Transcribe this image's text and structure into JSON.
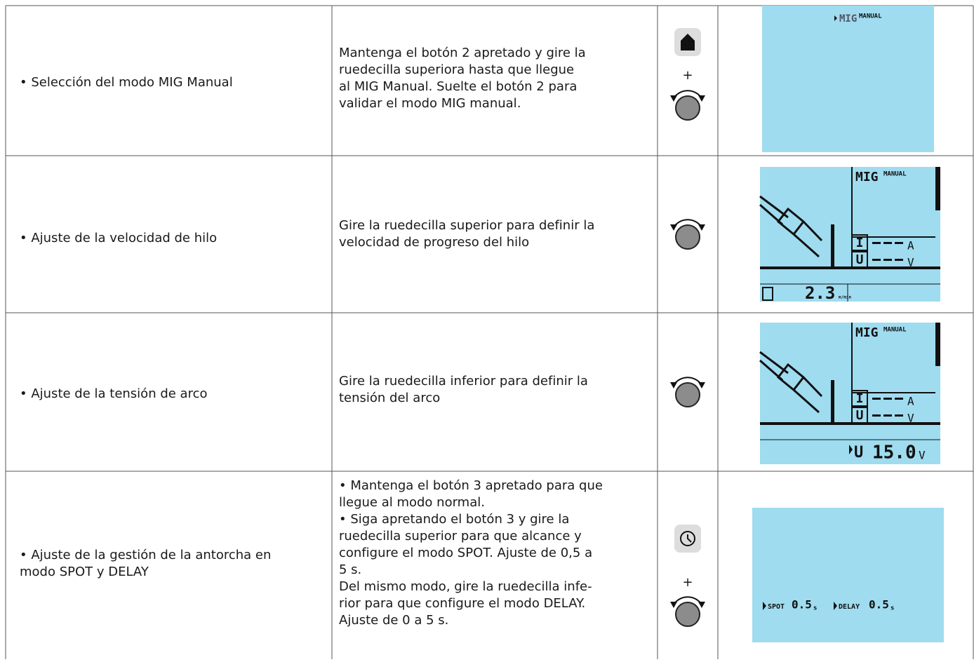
{
  "table": {
    "rows": [
      {
        "action": [
          "• Selección del modo MIG Manual"
        ],
        "instruction": [
          "Mantenga el botón 2 apretado y gire la",
          "ruedecilla superiora hasta que llegue",
          "al MIG Manual. Suelte el botón 2 para",
          "validar el modo MIG manual."
        ],
        "controls": {
          "plus": "+"
        },
        "screen": {
          "mode": "MIG",
          "sub": "MANUAL"
        }
      },
      {
        "action": [
          "• Ajuste de la velocidad de hilo"
        ],
        "instruction": [
          "Gire la ruedecilla superior para definir la",
          "velocidad de progreso del hilo"
        ],
        "screen": {
          "mode": "MIG",
          "sub": "MANUAL",
          "current": "I",
          "current_unit": "A",
          "voltage": "U",
          "voltage_unit": "V",
          "reading": "2.3",
          "reading_unit": "m/min"
        }
      },
      {
        "action": [
          "• Ajuste de la tensión de arco"
        ],
        "instruction": [
          "Gire la ruedecilla inferior para definir la",
          "tensión del arco"
        ],
        "screen": {
          "mode": "MIG",
          "sub": "MANUAL",
          "current": "I",
          "current_unit": "A",
          "voltage": "U",
          "voltage_unit": "V",
          "reading_label": "U",
          "reading": "15.0",
          "reading_unit": "V"
        }
      },
      {
        "action": [
          "• Ajuste de la gestión de la antorcha en",
          "modo SPOT y DELAY"
        ],
        "instruction": [
          "• Mantenga el botón 3 apretado para que",
          "llegue al modo normal.",
          "• Siga apretando el botón 3 y gire la",
          "ruedecilla superior para que alcance y",
          "configure el modo SPOT. Ajuste de 0,5 a",
          "5 s.",
          "Del mismo modo, gire la ruedecilla infe-",
          "rior para que configure el modo DELAY.",
          "Ajuste de 0 a 5 s."
        ],
        "controls": {
          "plus": "+"
        },
        "screen": {
          "spot_label": "SPOT",
          "spot_value": "0.5",
          "spot_unit": "s",
          "delay_label": "DELAY",
          "delay_value": "0.5",
          "delay_unit": "s"
        }
      }
    ]
  }
}
